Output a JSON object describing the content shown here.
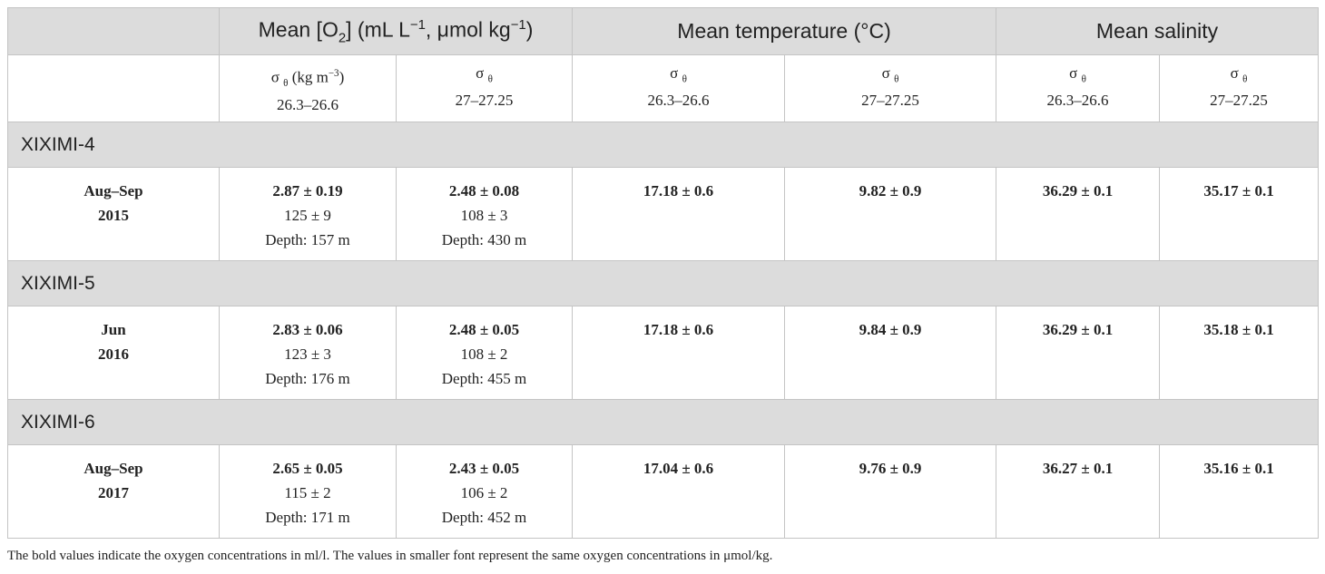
{
  "header": {
    "oxygen": [
      "Mean [O",
      "2",
      "] (mL L",
      "−1",
      ", μmol kg",
      "−1",
      ")"
    ],
    "temperature": "Mean temperature (°C)",
    "salinity": "Mean salinity"
  },
  "subheader": [
    {
      "symbol": "σ",
      "sub": "θ",
      "unit": [
        "(kg m",
        "−3",
        ")"
      ],
      "range": "26.3–26.6"
    },
    {
      "symbol": "σ",
      "sub": "θ",
      "range": "27–27.25"
    },
    {
      "symbol": "σ",
      "sub": "θ",
      "range": "26.3–26.6"
    },
    {
      "symbol": "σ",
      "sub": "θ",
      "range": "27–27.25"
    },
    {
      "symbol": "σ",
      "sub": "θ",
      "range": "26.3–26.6"
    },
    {
      "symbol": "σ",
      "sub": "θ",
      "range": "27–27.25"
    }
  ],
  "groups": [
    {
      "name": "XIXIMI-4",
      "period": [
        "Aug–Sep",
        "2015"
      ],
      "oxygen": [
        {
          "ml": "2.87 ± 0.19",
          "umol": "125 ± 9",
          "depth": "Depth: 157 m"
        },
        {
          "ml": "2.48 ± 0.08",
          "umol": "108 ± 3",
          "depth": "Depth: 430 m"
        }
      ],
      "temperature": [
        "17.18 ± 0.6",
        "9.82 ± 0.9"
      ],
      "salinity": [
        "36.29 ± 0.1",
        "35.17 ± 0.1"
      ]
    },
    {
      "name": "XIXIMI-5",
      "period": [
        "Jun",
        "2016"
      ],
      "oxygen": [
        {
          "ml": "2.83 ± 0.06",
          "umol": "123 ± 3",
          "depth": "Depth: 176 m"
        },
        {
          "ml": "2.48 ± 0.05",
          "umol": "108 ± 2",
          "depth": "Depth: 455 m"
        }
      ],
      "temperature": [
        "17.18 ± 0.6",
        "9.84 ± 0.9"
      ],
      "salinity": [
        "36.29 ± 0.1",
        "35.18 ± 0.1"
      ]
    },
    {
      "name": "XIXIMI-6",
      "period": [
        "Aug–Sep",
        "2017"
      ],
      "oxygen": [
        {
          "ml": "2.65 ± 0.05",
          "umol": "115 ± 2",
          "depth": "Depth: 171 m"
        },
        {
          "ml": "2.43 ± 0.05",
          "umol": "106 ± 2",
          "depth": "Depth: 452 m"
        }
      ],
      "temperature": [
        "17.04 ± 0.6",
        "9.76 ± 0.9"
      ],
      "salinity": [
        "36.27 ± 0.1",
        "35.16 ± 0.1"
      ]
    }
  ],
  "footnote": "The bold values indicate the oxygen concentrations in ml/l. The values in smaller font represent the same oxygen concentrations in μmol/kg."
}
